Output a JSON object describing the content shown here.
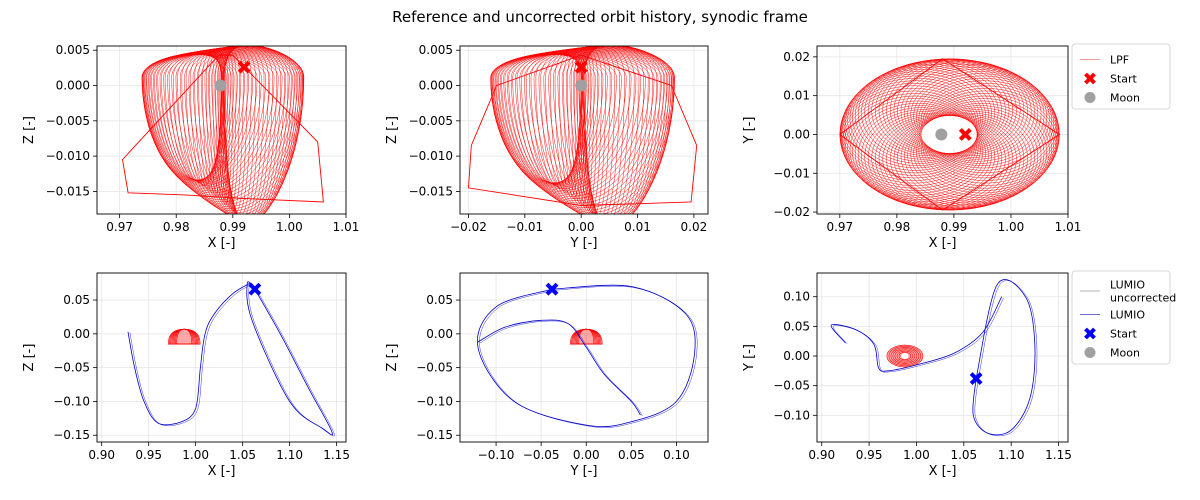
{
  "figure": {
    "title": "Reference and uncorrected orbit history, synodic frame"
  },
  "colors": {
    "lpf": "#ff0000",
    "lumio": "#0000cc",
    "lumio_uncorrected": "#b0b0b0",
    "start_top": "#ff0000",
    "start_bottom": "#0000ff",
    "moon": "#a0a0a0",
    "grid": "#e6e6e6"
  },
  "legends": {
    "top": {
      "entries": [
        {
          "label": "LPF",
          "kind": "line",
          "color": "#ff9a9a"
        },
        {
          "label": "Start",
          "kind": "x",
          "color": "#ff0000"
        },
        {
          "label": "Moon",
          "kind": "dot",
          "color": "#a0a0a0"
        }
      ]
    },
    "bottom": {
      "entries": [
        {
          "label": "LUMIO\nuncorrected",
          "kind": "line",
          "color": "#b0b0b0"
        },
        {
          "label": "LUMIO",
          "kind": "line",
          "color": "#6a6ad8"
        },
        {
          "label": "Start",
          "kind": "x",
          "color": "#0000ff"
        },
        {
          "label": "Moon",
          "kind": "dot",
          "color": "#a0a0a0"
        }
      ]
    }
  },
  "chart_data": [
    {
      "type": "line",
      "panel": "top-xz",
      "xlabel": "X [-]",
      "ylabel": "Z [-]",
      "xlim": [
        0.966,
        1.01
      ],
      "ylim": [
        -0.0182,
        0.0056
      ],
      "xticks": [
        0.97,
        0.98,
        0.99,
        1.0,
        1.01
      ],
      "xticklabels": [
        "0.97",
        "0.98",
        "0.99",
        "1.00",
        "1.01"
      ],
      "yticks": [
        0.005,
        0.0,
        -0.005,
        -0.01,
        -0.015
      ],
      "yticklabels": [
        "0.005",
        "0.000",
        "−0.005",
        "−0.010",
        "−0.015"
      ],
      "grid": true,
      "series": [
        {
          "name": "LPF",
          "role": "lpf",
          "x": [
            0.9875,
            0.9705,
            0.9715,
            0.9815,
            0.992,
            1.006,
            1.005,
            0.99,
            0.9875
          ],
          "y": [
            0.0043,
            -0.0105,
            -0.0152,
            -0.0155,
            -0.016,
            -0.0165,
            -0.008,
            0.0043,
            0.0043
          ]
        }
      ],
      "start": {
        "x": 0.992,
        "y": 0.0026
      },
      "moon": {
        "x": 0.9878,
        "y": 0.0
      }
    },
    {
      "type": "line",
      "panel": "top-yz",
      "xlabel": "Y [-]",
      "ylabel": "Z [-]",
      "xlim": [
        -0.0215,
        0.0225
      ],
      "ylim": [
        -0.0182,
        0.0056
      ],
      "xticks": [
        -0.02,
        -0.01,
        0.0,
        0.01,
        0.02
      ],
      "xticklabels": [
        "−0.02",
        "−0.01",
        "0.00",
        "0.01",
        "0.02"
      ],
      "yticks": [
        0.005,
        0.0,
        -0.005,
        -0.01,
        -0.015
      ],
      "yticklabels": [
        "0.005",
        "0.000",
        "−0.005",
        "−0.010",
        "−0.015"
      ],
      "grid": true,
      "series": [
        {
          "name": "LPF",
          "role": "lpf",
          "x": [
            0.0,
            -0.015,
            -0.0195,
            -0.02,
            0.0,
            0.0195,
            0.0205,
            0.016,
            0.0
          ],
          "y": [
            0.0043,
            0.0,
            -0.0085,
            -0.0145,
            -0.017,
            -0.0165,
            -0.0085,
            0.0,
            0.0043
          ]
        }
      ],
      "start": {
        "x": 0.0,
        "y": 0.0026
      },
      "moon": {
        "x": 0.0,
        "y": 0.0
      }
    },
    {
      "type": "line",
      "panel": "top-xy",
      "xlabel": "X [-]",
      "ylabel": "Y [-]",
      "xlim": [
        0.966,
        1.01
      ],
      "ylim": [
        -0.0205,
        0.0228
      ],
      "xticks": [
        0.97,
        0.98,
        0.99,
        1.0,
        1.01
      ],
      "xticklabels": [
        "0.97",
        "0.98",
        "0.99",
        "1.00",
        "1.01"
      ],
      "yticks": [
        0.02,
        0.01,
        0.0,
        -0.01,
        -0.02
      ],
      "yticklabels": [
        "0.02",
        "0.01",
        "0.00",
        "−0.01",
        "−0.02"
      ],
      "grid": true,
      "series": [
        {
          "name": "LPF",
          "role": "lpf",
          "x": [
            0.97,
            0.988,
            1.0085,
            0.988,
            0.97
          ],
          "y": [
            0.0,
            0.0195,
            0.0,
            -0.0195,
            0.0
          ]
        }
      ],
      "start": {
        "x": 0.992,
        "y": 0.0
      },
      "moon": {
        "x": 0.9878,
        "y": 0.0
      }
    },
    {
      "type": "line",
      "panel": "bottom-xz",
      "xlabel": "X [-]",
      "ylabel": "Z [-]",
      "xlim": [
        0.895,
        1.16
      ],
      "ylim": [
        -0.16,
        0.09
      ],
      "xticks": [
        0.9,
        0.95,
        1.0,
        1.05,
        1.1,
        1.15
      ],
      "xticklabels": [
        "0.90",
        "0.95",
        "1.00",
        "1.05",
        "1.10",
        "1.15"
      ],
      "yticks": [
        0.05,
        0.0,
        -0.05,
        -0.1,
        -0.15
      ],
      "yticklabels": [
        "0.05",
        "0.00",
        "−0.05",
        "−0.10",
        "−0.15"
      ],
      "grid": true,
      "series": [
        {
          "name": "LUMIO",
          "role": "lumio",
          "x": [
            1.063,
            1.09,
            1.12,
            1.145,
            1.135,
            1.1,
            1.06,
            1.055,
            1.063
          ],
          "y": [
            0.066,
            0.0,
            -0.08,
            -0.145,
            -0.14,
            -0.1,
            0.02,
            0.075,
            0.066
          ]
        },
        {
          "name": "LUMIO",
          "role": "lumio",
          "x": [
            1.058,
            1.04,
            1.02,
            1.01,
            1.005,
            1.0,
            0.985,
            0.96,
            0.945,
            0.935,
            0.928
          ],
          "y": [
            0.075,
            0.06,
            0.03,
            0.0,
            -0.05,
            -0.11,
            -0.13,
            -0.132,
            -0.1,
            -0.05,
            0.003
          ]
        }
      ],
      "start": {
        "x": 1.063,
        "y": 0.066
      },
      "moon": {
        "x": 0.9878,
        "y": -0.005
      }
    },
    {
      "type": "line",
      "panel": "bottom-yz",
      "xlabel": "Y [-]",
      "ylabel": "Z [-]",
      "xlim": [
        -0.14,
        0.135
      ],
      "ylim": [
        -0.16,
        0.09
      ],
      "xticks": [
        -0.1,
        -0.05,
        0.0,
        0.05,
        0.1
      ],
      "xticklabels": [
        "−0.10",
        "−0.05",
        "0.00",
        "0.05",
        "0.10"
      ],
      "yticks": [
        0.05,
        0.0,
        -0.05,
        -0.1,
        -0.15
      ],
      "yticklabels": [
        "0.05",
        "0.00",
        "−0.05",
        "−0.10",
        "−0.15"
      ],
      "grid": true,
      "series": [
        {
          "name": "LUMIO",
          "role": "lumio",
          "x": [
            -0.038,
            0.05,
            0.11,
            0.12,
            0.1,
            0.05,
            0.0,
            -0.08,
            -0.12,
            -0.1,
            -0.038
          ],
          "y": [
            0.066,
            0.07,
            0.03,
            -0.03,
            -0.1,
            -0.13,
            -0.135,
            -0.1,
            -0.02,
            0.04,
            0.066
          ]
        },
        {
          "name": "LUMIO",
          "role": "lumio",
          "x": [
            -0.12,
            -0.09,
            -0.05,
            -0.02,
            0.0,
            0.02,
            0.05,
            0.06
          ],
          "y": [
            -0.012,
            0.01,
            0.02,
            0.015,
            -0.02,
            -0.06,
            -0.1,
            -0.12
          ]
        }
      ],
      "start": {
        "x": -0.038,
        "y": 0.066
      },
      "moon": {
        "x": 0.0,
        "y": -0.005
      }
    },
    {
      "type": "line",
      "panel": "bottom-xy",
      "xlabel": "X [-]",
      "ylabel": "Y [-]",
      "xlim": [
        0.895,
        1.16
      ],
      "ylim": [
        -0.145,
        0.14
      ],
      "xticks": [
        0.9,
        0.95,
        1.0,
        1.05,
        1.1,
        1.15
      ],
      "xticklabels": [
        "0.90",
        "0.95",
        "1.00",
        "1.05",
        "1.10",
        "1.15"
      ],
      "yticks": [
        0.1,
        0.05,
        0.0,
        -0.05,
        -0.1
      ],
      "yticklabels": [
        "0.10",
        "0.05",
        "0.00",
        "−0.05",
        "−0.10"
      ],
      "grid": true,
      "series": [
        {
          "name": "LUMIO",
          "role": "lumio",
          "x": [
            1.063,
            1.06,
            1.075,
            1.1,
            1.12,
            1.125,
            1.115,
            1.085,
            1.063
          ],
          "y": [
            -0.038,
            -0.1,
            -0.13,
            -0.125,
            -0.07,
            0.02,
            0.1,
            0.12,
            -0.038
          ]
        },
        {
          "name": "LUMIO",
          "role": "lumio",
          "x": [
            0.925,
            0.91,
            0.935,
            0.955,
            0.96,
            0.97,
            1.0,
            1.04,
            1.07,
            1.09
          ],
          "y": [
            0.022,
            0.052,
            0.045,
            0.02,
            -0.02,
            -0.025,
            -0.015,
            0.005,
            0.04,
            0.1
          ]
        }
      ],
      "start": {
        "x": 1.063,
        "y": -0.038
      },
      "moon": {
        "x": 0.9878,
        "y": 0.0
      }
    }
  ]
}
